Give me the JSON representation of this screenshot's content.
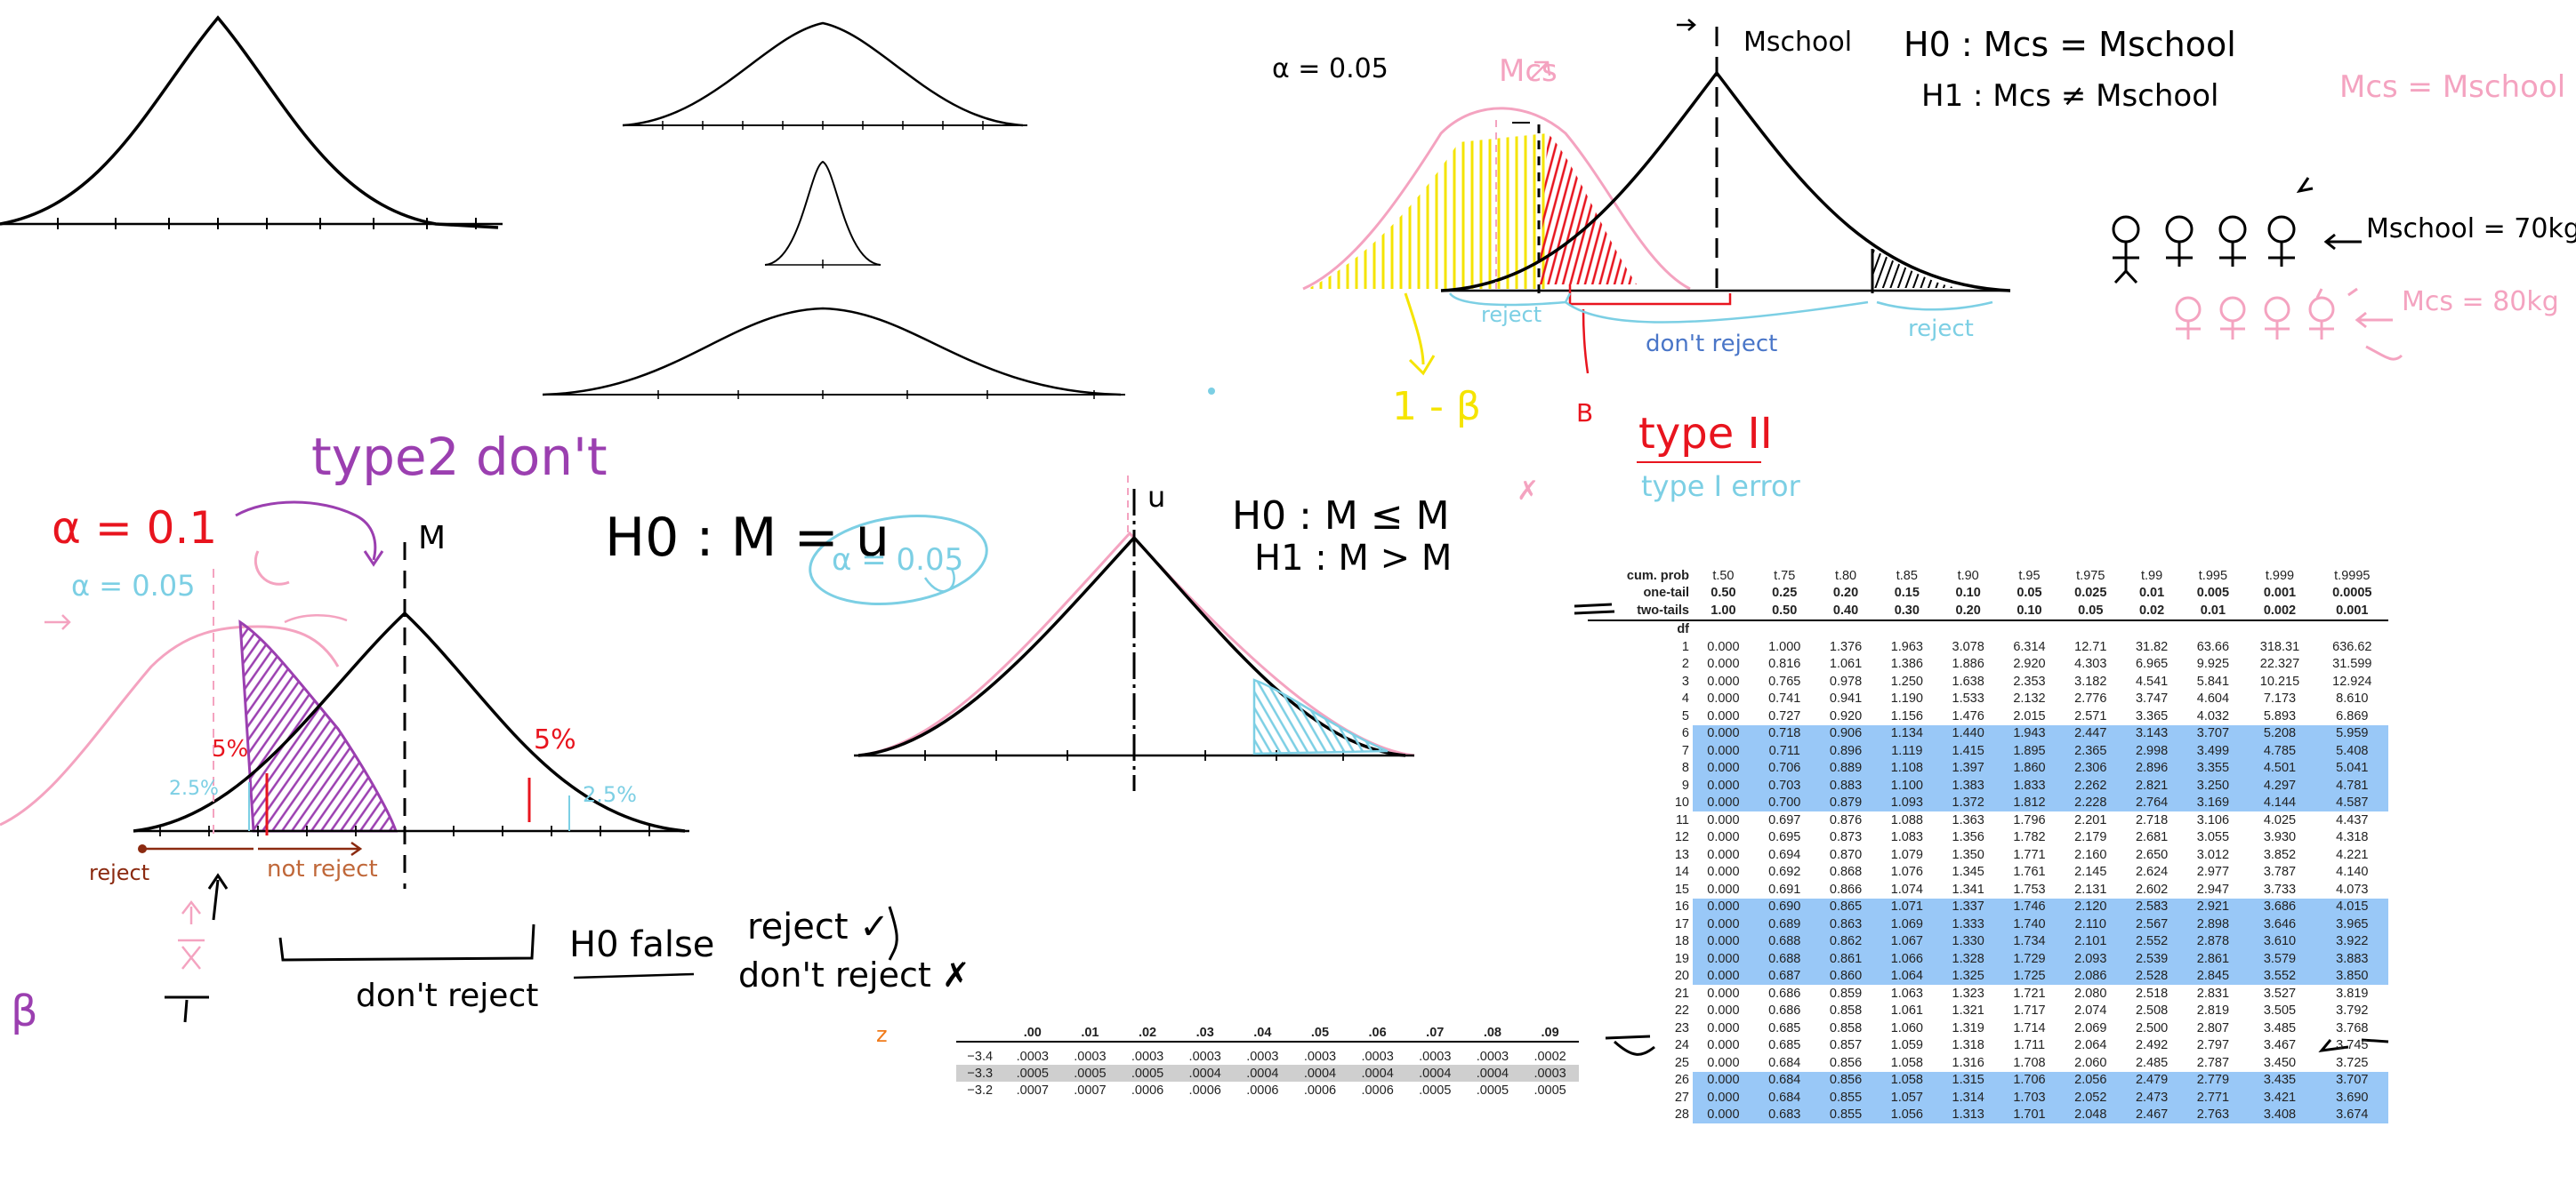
{
  "colors": {
    "ink": "#000000",
    "pink": "#f4a3c0",
    "red": "#e8141e",
    "yellow": "#f5e400",
    "purple": "#9b3fb0",
    "cyan": "#7ccfe4",
    "brown": "#8b2a10",
    "orange": "#f07a1a",
    "table_highlight": "#99c8f7"
  },
  "annotations": {
    "alpha_005_top": "α = 0.05",
    "mu_cs_top": "Mcs",
    "m_school_top": "Mschool",
    "h0_top": "H0 : Mcs = Mschool",
    "h1_top": "H1 : Mcs ≠ Mschool",
    "mcs_eq_mschool_q": "Mcs = Mschool ?",
    "m_school_weight": "Mschool = 70kg",
    "m_cs_weight": "Mcs = 80kg",
    "reject_left_top": "reject",
    "dont_reject_top": "don't reject",
    "reject_right_top": "reject",
    "one_minus_beta": "1 - β",
    "b_label": "B",
    "type_ii": "type II",
    "type_i_error": "type I error",
    "type2_dont": "type2  don't",
    "alpha_01": "α = 0.1",
    "alpha_005_left": "α = 0.05",
    "m_left": "M",
    "pct5_left": "5%",
    "pct5_right": "5%",
    "pct25_left": "2.5%",
    "pct25_right": "2.5%",
    "reject_left_bottom": "reject",
    "not_reject": "not reject",
    "dont_reject_bottom": "don't reject",
    "beta_symbol": "β",
    "h0_false": "H0 false",
    "reject_check": "reject ✓",
    "dont_reject_x": "don't reject ✗",
    "h0_mid": "H0 : M = u",
    "alpha_005_mid": "α = 0.05",
    "u_top": "u",
    "h0_right": "H0 : M ≤ M",
    "h1_right": "H1 : M > M",
    "z_label": "z"
  },
  "t_table": {
    "cum_prob_label": "cum. prob",
    "cum_prob": [
      "t.50",
      "t.75",
      "t.80",
      "t.85",
      "t.90",
      "t.95",
      "t.975",
      "t.99",
      "t.995",
      "t.999",
      "t.9995"
    ],
    "one_tail_label": "one-tail",
    "one_tail": [
      "0.50",
      "0.25",
      "0.20",
      "0.15",
      "0.10",
      "0.05",
      "0.025",
      "0.01",
      "0.005",
      "0.001",
      "0.0005"
    ],
    "two_tails_label": "two-tails",
    "two_tails": [
      "1.00",
      "0.50",
      "0.40",
      "0.30",
      "0.20",
      "0.10",
      "0.05",
      "0.02",
      "0.01",
      "0.002",
      "0.001"
    ],
    "df_label": "df",
    "rows": [
      [
        "1",
        "0.000",
        "1.000",
        "1.376",
        "1.963",
        "3.078",
        "6.314",
        "12.71",
        "31.82",
        "63.66",
        "318.31",
        "636.62"
      ],
      [
        "2",
        "0.000",
        "0.816",
        "1.061",
        "1.386",
        "1.886",
        "2.920",
        "4.303",
        "6.965",
        "9.925",
        "22.327",
        "31.599"
      ],
      [
        "3",
        "0.000",
        "0.765",
        "0.978",
        "1.250",
        "1.638",
        "2.353",
        "3.182",
        "4.541",
        "5.841",
        "10.215",
        "12.924"
      ],
      [
        "4",
        "0.000",
        "0.741",
        "0.941",
        "1.190",
        "1.533",
        "2.132",
        "2.776",
        "3.747",
        "4.604",
        "7.173",
        "8.610"
      ],
      [
        "5",
        "0.000",
        "0.727",
        "0.920",
        "1.156",
        "1.476",
        "2.015",
        "2.571",
        "3.365",
        "4.032",
        "5.893",
        "6.869"
      ],
      [
        "6",
        "0.000",
        "0.718",
        "0.906",
        "1.134",
        "1.440",
        "1.943",
        "2.447",
        "3.143",
        "3.707",
        "5.208",
        "5.959"
      ],
      [
        "7",
        "0.000",
        "0.711",
        "0.896",
        "1.119",
        "1.415",
        "1.895",
        "2.365",
        "2.998",
        "3.499",
        "4.785",
        "5.408"
      ],
      [
        "8",
        "0.000",
        "0.706",
        "0.889",
        "1.108",
        "1.397",
        "1.860",
        "2.306",
        "2.896",
        "3.355",
        "4.501",
        "5.041"
      ],
      [
        "9",
        "0.000",
        "0.703",
        "0.883",
        "1.100",
        "1.383",
        "1.833",
        "2.262",
        "2.821",
        "3.250",
        "4.297",
        "4.781"
      ],
      [
        "10",
        "0.000",
        "0.700",
        "0.879",
        "1.093",
        "1.372",
        "1.812",
        "2.228",
        "2.764",
        "3.169",
        "4.144",
        "4.587"
      ],
      [
        "11",
        "0.000",
        "0.697",
        "0.876",
        "1.088",
        "1.363",
        "1.796",
        "2.201",
        "2.718",
        "3.106",
        "4.025",
        "4.437"
      ],
      [
        "12",
        "0.000",
        "0.695",
        "0.873",
        "1.083",
        "1.356",
        "1.782",
        "2.179",
        "2.681",
        "3.055",
        "3.930",
        "4.318"
      ],
      [
        "13",
        "0.000",
        "0.694",
        "0.870",
        "1.079",
        "1.350",
        "1.771",
        "2.160",
        "2.650",
        "3.012",
        "3.852",
        "4.221"
      ],
      [
        "14",
        "0.000",
        "0.692",
        "0.868",
        "1.076",
        "1.345",
        "1.761",
        "2.145",
        "2.624",
        "2.977",
        "3.787",
        "4.140"
      ],
      [
        "15",
        "0.000",
        "0.691",
        "0.866",
        "1.074",
        "1.341",
        "1.753",
        "2.131",
        "2.602",
        "2.947",
        "3.733",
        "4.073"
      ],
      [
        "16",
        "0.000",
        "0.690",
        "0.865",
        "1.071",
        "1.337",
        "1.746",
        "2.120",
        "2.583",
        "2.921",
        "3.686",
        "4.015"
      ],
      [
        "17",
        "0.000",
        "0.689",
        "0.863",
        "1.069",
        "1.333",
        "1.740",
        "2.110",
        "2.567",
        "2.898",
        "3.646",
        "3.965"
      ],
      [
        "18",
        "0.000",
        "0.688",
        "0.862",
        "1.067",
        "1.330",
        "1.734",
        "2.101",
        "2.552",
        "2.878",
        "3.610",
        "3.922"
      ],
      [
        "19",
        "0.000",
        "0.688",
        "0.861",
        "1.066",
        "1.328",
        "1.729",
        "2.093",
        "2.539",
        "2.861",
        "3.579",
        "3.883"
      ],
      [
        "20",
        "0.000",
        "0.687",
        "0.860",
        "1.064",
        "1.325",
        "1.725",
        "2.086",
        "2.528",
        "2.845",
        "3.552",
        "3.850"
      ],
      [
        "21",
        "0.000",
        "0.686",
        "0.859",
        "1.063",
        "1.323",
        "1.721",
        "2.080",
        "2.518",
        "2.831",
        "3.527",
        "3.819"
      ],
      [
        "22",
        "0.000",
        "0.686",
        "0.858",
        "1.061",
        "1.321",
        "1.717",
        "2.074",
        "2.508",
        "2.819",
        "3.505",
        "3.792"
      ],
      [
        "23",
        "0.000",
        "0.685",
        "0.858",
        "1.060",
        "1.319",
        "1.714",
        "2.069",
        "2.500",
        "2.807",
        "3.485",
        "3.768"
      ],
      [
        "24",
        "0.000",
        "0.685",
        "0.857",
        "1.059",
        "1.318",
        "1.711",
        "2.064",
        "2.492",
        "2.797",
        "3.467",
        "3.745"
      ],
      [
        "25",
        "0.000",
        "0.684",
        "0.856",
        "1.058",
        "1.316",
        "1.708",
        "2.060",
        "2.485",
        "2.787",
        "3.450",
        "3.725"
      ],
      [
        "26",
        "0.000",
        "0.684",
        "0.856",
        "1.058",
        "1.315",
        "1.706",
        "2.056",
        "2.479",
        "2.779",
        "3.435",
        "3.707"
      ],
      [
        "27",
        "0.000",
        "0.684",
        "0.855",
        "1.057",
        "1.314",
        "1.703",
        "2.052",
        "2.473",
        "2.771",
        "3.421",
        "3.690"
      ],
      [
        "28",
        "0.000",
        "0.683",
        "0.855",
        "1.056",
        "1.313",
        "1.701",
        "2.048",
        "2.467",
        "2.763",
        "3.408",
        "3.674"
      ]
    ],
    "highlighted_df": [
      "6",
      "7",
      "8",
      "9",
      "10",
      "16",
      "17",
      "18",
      "19",
      "20",
      "26",
      "27",
      "28"
    ]
  },
  "z_table": {
    "header": [
      "z",
      ".00",
      ".01",
      ".02",
      ".03",
      ".04",
      ".05",
      ".06",
      ".07",
      ".08",
      ".09"
    ],
    "rows": [
      [
        "-3.4",
        ".0003",
        ".0003",
        ".0003",
        ".0003",
        ".0003",
        ".0003",
        ".0003",
        ".0003",
        ".0003",
        ".0002"
      ],
      [
        "-3.3",
        ".0005",
        ".0005",
        ".0005",
        ".0004",
        ".0004",
        ".0004",
        ".0004",
        ".0004",
        ".0004",
        ".0003"
      ],
      [
        "-3.2",
        ".0007",
        ".0007",
        ".0006",
        ".0006",
        ".0006",
        ".0006",
        ".0006",
        ".0005",
        ".0005",
        ".0005"
      ]
    ],
    "highlighted_z": [
      "-3.3"
    ]
  }
}
